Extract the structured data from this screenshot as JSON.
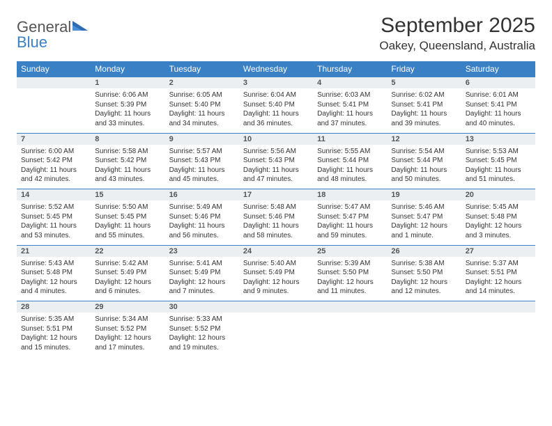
{
  "brand": {
    "name_part1": "General",
    "name_part2": "Blue"
  },
  "title": "September 2025",
  "location": "Oakey, Queensland, Australia",
  "colors": {
    "header_bg": "#3a80c4",
    "header_text": "#ffffff",
    "daynum_bg": "#eceff2",
    "border": "#3a80c4",
    "text": "#333333",
    "brand_blue": "#3a80c4"
  },
  "weekdays": [
    "Sunday",
    "Monday",
    "Tuesday",
    "Wednesday",
    "Thursday",
    "Friday",
    "Saturday"
  ],
  "weeks": [
    {
      "nums": [
        "",
        "1",
        "2",
        "3",
        "4",
        "5",
        "6"
      ],
      "cells": [
        null,
        {
          "sunrise": "Sunrise: 6:06 AM",
          "sunset": "Sunset: 5:39 PM",
          "day1": "Daylight: 11 hours",
          "day2": "and 33 minutes."
        },
        {
          "sunrise": "Sunrise: 6:05 AM",
          "sunset": "Sunset: 5:40 PM",
          "day1": "Daylight: 11 hours",
          "day2": "and 34 minutes."
        },
        {
          "sunrise": "Sunrise: 6:04 AM",
          "sunset": "Sunset: 5:40 PM",
          "day1": "Daylight: 11 hours",
          "day2": "and 36 minutes."
        },
        {
          "sunrise": "Sunrise: 6:03 AM",
          "sunset": "Sunset: 5:41 PM",
          "day1": "Daylight: 11 hours",
          "day2": "and 37 minutes."
        },
        {
          "sunrise": "Sunrise: 6:02 AM",
          "sunset": "Sunset: 5:41 PM",
          "day1": "Daylight: 11 hours",
          "day2": "and 39 minutes."
        },
        {
          "sunrise": "Sunrise: 6:01 AM",
          "sunset": "Sunset: 5:41 PM",
          "day1": "Daylight: 11 hours",
          "day2": "and 40 minutes."
        }
      ]
    },
    {
      "nums": [
        "7",
        "8",
        "9",
        "10",
        "11",
        "12",
        "13"
      ],
      "cells": [
        {
          "sunrise": "Sunrise: 6:00 AM",
          "sunset": "Sunset: 5:42 PM",
          "day1": "Daylight: 11 hours",
          "day2": "and 42 minutes."
        },
        {
          "sunrise": "Sunrise: 5:58 AM",
          "sunset": "Sunset: 5:42 PM",
          "day1": "Daylight: 11 hours",
          "day2": "and 43 minutes."
        },
        {
          "sunrise": "Sunrise: 5:57 AM",
          "sunset": "Sunset: 5:43 PM",
          "day1": "Daylight: 11 hours",
          "day2": "and 45 minutes."
        },
        {
          "sunrise": "Sunrise: 5:56 AM",
          "sunset": "Sunset: 5:43 PM",
          "day1": "Daylight: 11 hours",
          "day2": "and 47 minutes."
        },
        {
          "sunrise": "Sunrise: 5:55 AM",
          "sunset": "Sunset: 5:44 PM",
          "day1": "Daylight: 11 hours",
          "day2": "and 48 minutes."
        },
        {
          "sunrise": "Sunrise: 5:54 AM",
          "sunset": "Sunset: 5:44 PM",
          "day1": "Daylight: 11 hours",
          "day2": "and 50 minutes."
        },
        {
          "sunrise": "Sunrise: 5:53 AM",
          "sunset": "Sunset: 5:45 PM",
          "day1": "Daylight: 11 hours",
          "day2": "and 51 minutes."
        }
      ]
    },
    {
      "nums": [
        "14",
        "15",
        "16",
        "17",
        "18",
        "19",
        "20"
      ],
      "cells": [
        {
          "sunrise": "Sunrise: 5:52 AM",
          "sunset": "Sunset: 5:45 PM",
          "day1": "Daylight: 11 hours",
          "day2": "and 53 minutes."
        },
        {
          "sunrise": "Sunrise: 5:50 AM",
          "sunset": "Sunset: 5:45 PM",
          "day1": "Daylight: 11 hours",
          "day2": "and 55 minutes."
        },
        {
          "sunrise": "Sunrise: 5:49 AM",
          "sunset": "Sunset: 5:46 PM",
          "day1": "Daylight: 11 hours",
          "day2": "and 56 minutes."
        },
        {
          "sunrise": "Sunrise: 5:48 AM",
          "sunset": "Sunset: 5:46 PM",
          "day1": "Daylight: 11 hours",
          "day2": "and 58 minutes."
        },
        {
          "sunrise": "Sunrise: 5:47 AM",
          "sunset": "Sunset: 5:47 PM",
          "day1": "Daylight: 11 hours",
          "day2": "and 59 minutes."
        },
        {
          "sunrise": "Sunrise: 5:46 AM",
          "sunset": "Sunset: 5:47 PM",
          "day1": "Daylight: 12 hours",
          "day2": "and 1 minute."
        },
        {
          "sunrise": "Sunrise: 5:45 AM",
          "sunset": "Sunset: 5:48 PM",
          "day1": "Daylight: 12 hours",
          "day2": "and 3 minutes."
        }
      ]
    },
    {
      "nums": [
        "21",
        "22",
        "23",
        "24",
        "25",
        "26",
        "27"
      ],
      "cells": [
        {
          "sunrise": "Sunrise: 5:43 AM",
          "sunset": "Sunset: 5:48 PM",
          "day1": "Daylight: 12 hours",
          "day2": "and 4 minutes."
        },
        {
          "sunrise": "Sunrise: 5:42 AM",
          "sunset": "Sunset: 5:49 PM",
          "day1": "Daylight: 12 hours",
          "day2": "and 6 minutes."
        },
        {
          "sunrise": "Sunrise: 5:41 AM",
          "sunset": "Sunset: 5:49 PM",
          "day1": "Daylight: 12 hours",
          "day2": "and 7 minutes."
        },
        {
          "sunrise": "Sunrise: 5:40 AM",
          "sunset": "Sunset: 5:49 PM",
          "day1": "Daylight: 12 hours",
          "day2": "and 9 minutes."
        },
        {
          "sunrise": "Sunrise: 5:39 AM",
          "sunset": "Sunset: 5:50 PM",
          "day1": "Daylight: 12 hours",
          "day2": "and 11 minutes."
        },
        {
          "sunrise": "Sunrise: 5:38 AM",
          "sunset": "Sunset: 5:50 PM",
          "day1": "Daylight: 12 hours",
          "day2": "and 12 minutes."
        },
        {
          "sunrise": "Sunrise: 5:37 AM",
          "sunset": "Sunset: 5:51 PM",
          "day1": "Daylight: 12 hours",
          "day2": "and 14 minutes."
        }
      ]
    },
    {
      "nums": [
        "28",
        "29",
        "30",
        "",
        "",
        "",
        ""
      ],
      "cells": [
        {
          "sunrise": "Sunrise: 5:35 AM",
          "sunset": "Sunset: 5:51 PM",
          "day1": "Daylight: 12 hours",
          "day2": "and 15 minutes."
        },
        {
          "sunrise": "Sunrise: 5:34 AM",
          "sunset": "Sunset: 5:52 PM",
          "day1": "Daylight: 12 hours",
          "day2": "and 17 minutes."
        },
        {
          "sunrise": "Sunrise: 5:33 AM",
          "sunset": "Sunset: 5:52 PM",
          "day1": "Daylight: 12 hours",
          "day2": "and 19 minutes."
        },
        null,
        null,
        null,
        null
      ]
    }
  ]
}
